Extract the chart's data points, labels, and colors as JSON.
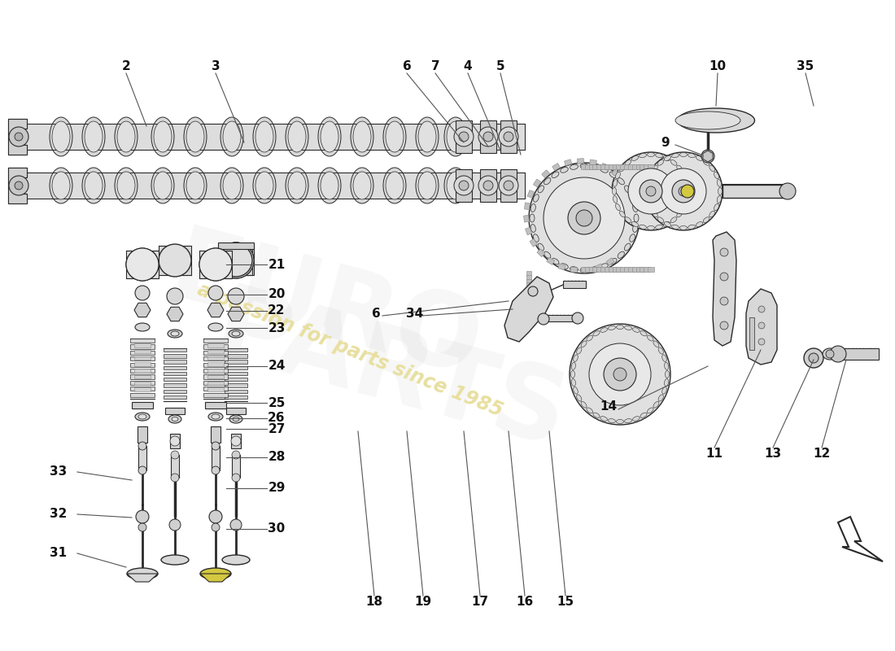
{
  "bg_color": "#ffffff",
  "lc": "#2a2a2a",
  "fc_light": "#e8e8e8",
  "fc_mid": "#d0d0d0",
  "fc_dark": "#b8b8b8",
  "yellow": "#d4c840",
  "wm_text": "a passion for parts since 1985",
  "wm_color": "#e8dfa0",
  "label_fs": 11,
  "label_fw": "bold",
  "label_color": "#111111"
}
